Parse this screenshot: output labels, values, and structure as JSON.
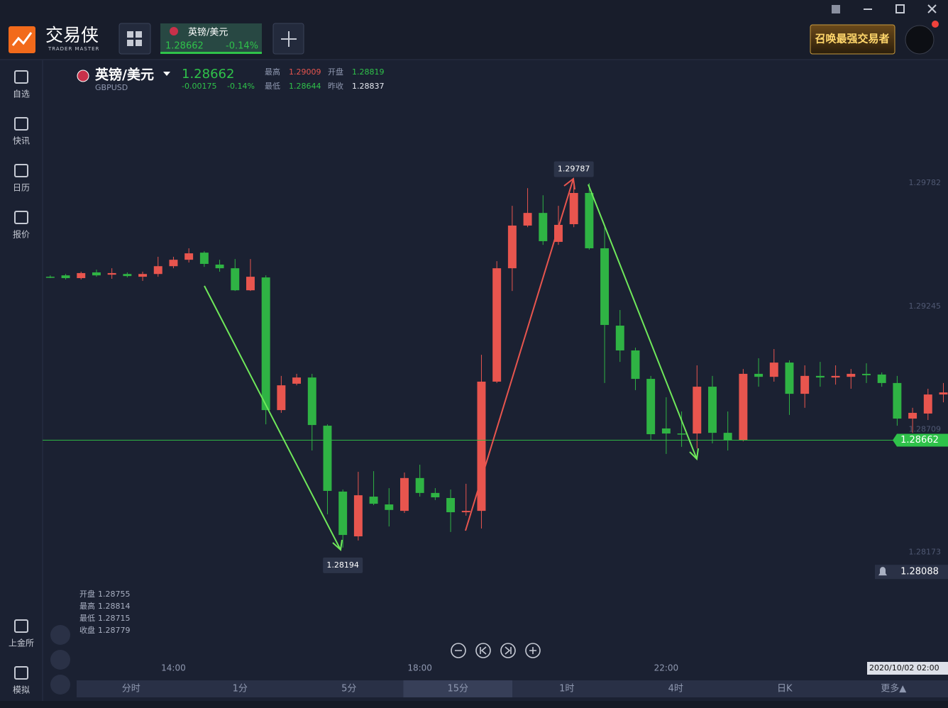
{
  "header": {
    "logo": "交易侠",
    "logo_sub": "TRADER MASTER",
    "tab": {
      "name": "英镑/美元",
      "price": "1.28662",
      "change": "-0.14%"
    },
    "banner": "召唤最强交易者"
  },
  "sidebar": [
    "自选",
    "快讯",
    "日历",
    "报价",
    "上金所",
    "模拟"
  ],
  "quote": {
    "name": "英镑/美元",
    "code": "GBPUSD",
    "price": "1.28662",
    "change": "-0.00175",
    "change_pct": "-0.14%",
    "stats": [
      {
        "label": "最高",
        "value": "1.29009",
        "color": "#e8554e"
      },
      {
        "label": "开盘",
        "value": "1.28819",
        "color": "#2fc24a"
      },
      {
        "label": "最低",
        "value": "1.28644",
        "color": "#2fc24a"
      },
      {
        "label": "昨收",
        "value": "1.28837",
        "color": "#e6e9f0"
      }
    ]
  },
  "ohlc_info": [
    {
      "label": "开盘",
      "value": "1.28755"
    },
    {
      "label": "最高",
      "value": "1.28814"
    },
    {
      "label": "最低",
      "value": "1.28715"
    },
    {
      "label": "收盘",
      "value": "1.28779"
    }
  ],
  "chart_data": {
    "type": "candlestick",
    "up_color": "#e8554e",
    "down_color": "#2fb344",
    "open": [
      1.29374,
      1.2938,
      1.29368,
      1.29393,
      1.29383,
      1.29386,
      1.29374,
      1.29386,
      1.2942,
      1.29448,
      1.29479,
      1.29427,
      1.29411,
      1.29315,
      1.29371,
      1.28793,
      1.28908,
      1.28935,
      1.28725,
      1.28438,
      1.28243,
      1.28416,
      1.28382,
      1.28354,
      1.28497,
      1.28432,
      1.2841,
      1.28348,
      1.28354,
      1.28917,
      1.29411,
      1.29597,
      1.29652,
      1.29526,
      1.29603,
      1.29739,
      1.29498,
      1.29161,
      1.29053,
      1.28929,
      1.28713,
      1.28691,
      1.28691,
      1.28895,
      1.28694,
      1.28663,
      1.28951,
      1.28938,
      1.29,
      1.28864,
      1.28942,
      1.28935,
      1.28938,
      1.28951,
      1.28948,
      1.28911,
      1.28756,
      1.28778,
      1.28861
    ],
    "high": [
      1.2938,
      1.29386,
      1.29396,
      1.29405,
      1.29411,
      1.29393,
      1.29396,
      1.29461,
      1.29461,
      1.29498,
      1.29485,
      1.29448,
      1.29451,
      1.29451,
      1.2938,
      1.28942,
      1.28951,
      1.28951,
      1.28731,
      1.28447,
      1.28524,
      1.28527,
      1.28453,
      1.28521,
      1.28555,
      1.28453,
      1.28447,
      1.28472,
      1.29034,
      1.29442,
      1.29683,
      1.2976,
      1.29729,
      1.29683,
      1.29787,
      1.29782,
      1.2959,
      1.29229,
      1.29065,
      1.28942,
      1.28849,
      1.28787,
      1.28988,
      1.28942,
      1.28787,
      1.28972,
      1.29019,
      1.29059,
      1.2901,
      1.28988,
      1.29003,
      1.28988,
      1.28972,
      1.28997,
      1.28957,
      1.28942,
      1.28803,
      1.28886,
      1.28911
    ],
    "low": [
      1.29368,
      1.29362,
      1.29362,
      1.29374,
      1.29365,
      1.29371,
      1.29356,
      1.29374,
      1.29411,
      1.29436,
      1.29417,
      1.29396,
      1.29312,
      1.29312,
      1.28731,
      1.28781,
      1.28901,
      1.28617,
      1.28339,
      1.28194,
      1.28225,
      1.28379,
      1.28286,
      1.28345,
      1.28416,
      1.28401,
      1.28262,
      1.28333,
      1.28277,
      1.28911,
      1.29312,
      1.2959,
      1.29513,
      1.29513,
      1.2959,
      1.29492,
      1.28911,
      1.29003,
      1.2888,
      1.28663,
      1.28602,
      1.28633,
      1.28626,
      1.28648,
      1.28617,
      1.28657,
      1.28895,
      1.28917,
      1.28772,
      1.28803,
      1.28895,
      1.28904,
      1.28886,
      1.28911,
      1.28895,
      1.28725,
      1.28694,
      1.2875,
      1.28827
    ],
    "close": [
      1.29372,
      1.29368,
      1.2939,
      1.2938,
      1.2939,
      1.29377,
      1.29386,
      1.2942,
      1.29448,
      1.29476,
      1.2943,
      1.29411,
      1.29315,
      1.29374,
      1.28793,
      1.28901,
      1.28935,
      1.28728,
      1.28441,
      1.28249,
      1.28422,
      1.28385,
      1.28358,
      1.28497,
      1.28432,
      1.28413,
      1.28348,
      1.28354,
      1.28917,
      1.29411,
      1.29597,
      1.29652,
      1.29529,
      1.296,
      1.29739,
      1.29498,
      1.29164,
      1.29053,
      1.28929,
      1.28688,
      1.28691,
      1.28688,
      1.28895,
      1.28694,
      1.28663,
      1.28951,
      1.28938,
      1.29,
      1.28864,
      1.28942,
      1.28935,
      1.28942,
      1.28951,
      1.28945,
      1.28911,
      1.28756,
      1.28781,
      1.28861,
      1.2887
    ],
    "xlim": [
      -0.5,
      58.3
    ],
    "ylim": [
      1.27628,
      1.30317
    ],
    "yticks": [
      1.29782,
      1.29245,
      1.28709,
      1.28173
    ],
    "xticks": [
      {
        "value": 8,
        "label": "14:00"
      },
      {
        "value": 24,
        "label": "18:00"
      },
      {
        "value": 40,
        "label": "22:00"
      }
    ],
    "grid": false,
    "last_price": 1.28662,
    "alert_price": 1.28088,
    "max_label": 1.29787,
    "min_label": 1.28194,
    "cursor_time": "2020/10/02 02:00"
  },
  "timeframes": [
    "分时",
    "1分",
    "5分",
    "15分",
    "1时",
    "4时",
    "日K",
    "更多▲"
  ],
  "selected_timeframe": 3
}
